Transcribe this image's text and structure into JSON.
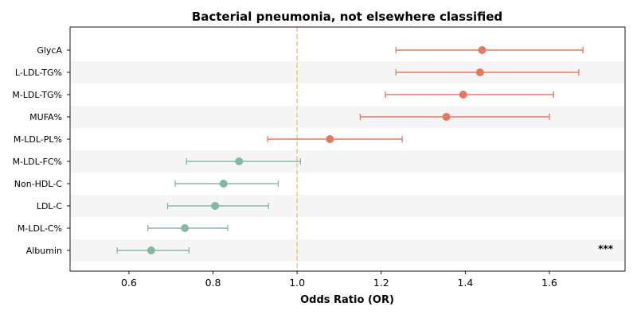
{
  "chart_data": {
    "type": "forest",
    "title": "Bacterial pneumonia, not elsewhere classified",
    "xlabel": "Odds Ratio (OR)",
    "ylabel": "",
    "xlim": [
      0.46,
      1.78
    ],
    "xticks": [
      0.6,
      0.8,
      1.0,
      1.2,
      1.4,
      1.6
    ],
    "xtick_labels": [
      "0.6",
      "0.8",
      "1.0",
      "1.2",
      "1.4",
      "1.6"
    ],
    "reference_line": 1.0,
    "grid": false,
    "row_banding": true,
    "colors": {
      "positive": "#e07b61",
      "negative": "#86b8a0",
      "reference": "#f5c878",
      "band": "#f5f5f5"
    },
    "rows": [
      {
        "label": "GlycA",
        "or": 1.44,
        "lower": 1.235,
        "upper": 1.68,
        "annotation": ""
      },
      {
        "label": "L-LDL-TG%",
        "or": 1.435,
        "lower": 1.235,
        "upper": 1.67,
        "annotation": ""
      },
      {
        "label": "M-LDL-TG%",
        "or": 1.395,
        "lower": 1.21,
        "upper": 1.61,
        "annotation": ""
      },
      {
        "label": "MUFA%",
        "or": 1.355,
        "lower": 1.15,
        "upper": 1.6,
        "annotation": ""
      },
      {
        "label": "M-LDL-PL%",
        "or": 1.078,
        "lower": 0.93,
        "upper": 1.25,
        "annotation": ""
      },
      {
        "label": "M-LDL-FC%",
        "or": 0.862,
        "lower": 0.737,
        "upper": 1.008,
        "annotation": ""
      },
      {
        "label": "Non-HDL-C",
        "or": 0.825,
        "lower": 0.71,
        "upper": 0.955,
        "annotation": ""
      },
      {
        "label": "LDL-C",
        "or": 0.805,
        "lower": 0.692,
        "upper": 0.932,
        "annotation": ""
      },
      {
        "label": "M-LDL-C%",
        "or": 0.733,
        "lower": 0.645,
        "upper": 0.835,
        "annotation": ""
      },
      {
        "label": "Albumin",
        "or": 0.653,
        "lower": 0.572,
        "upper": 0.743,
        "annotation": "***"
      }
    ]
  }
}
